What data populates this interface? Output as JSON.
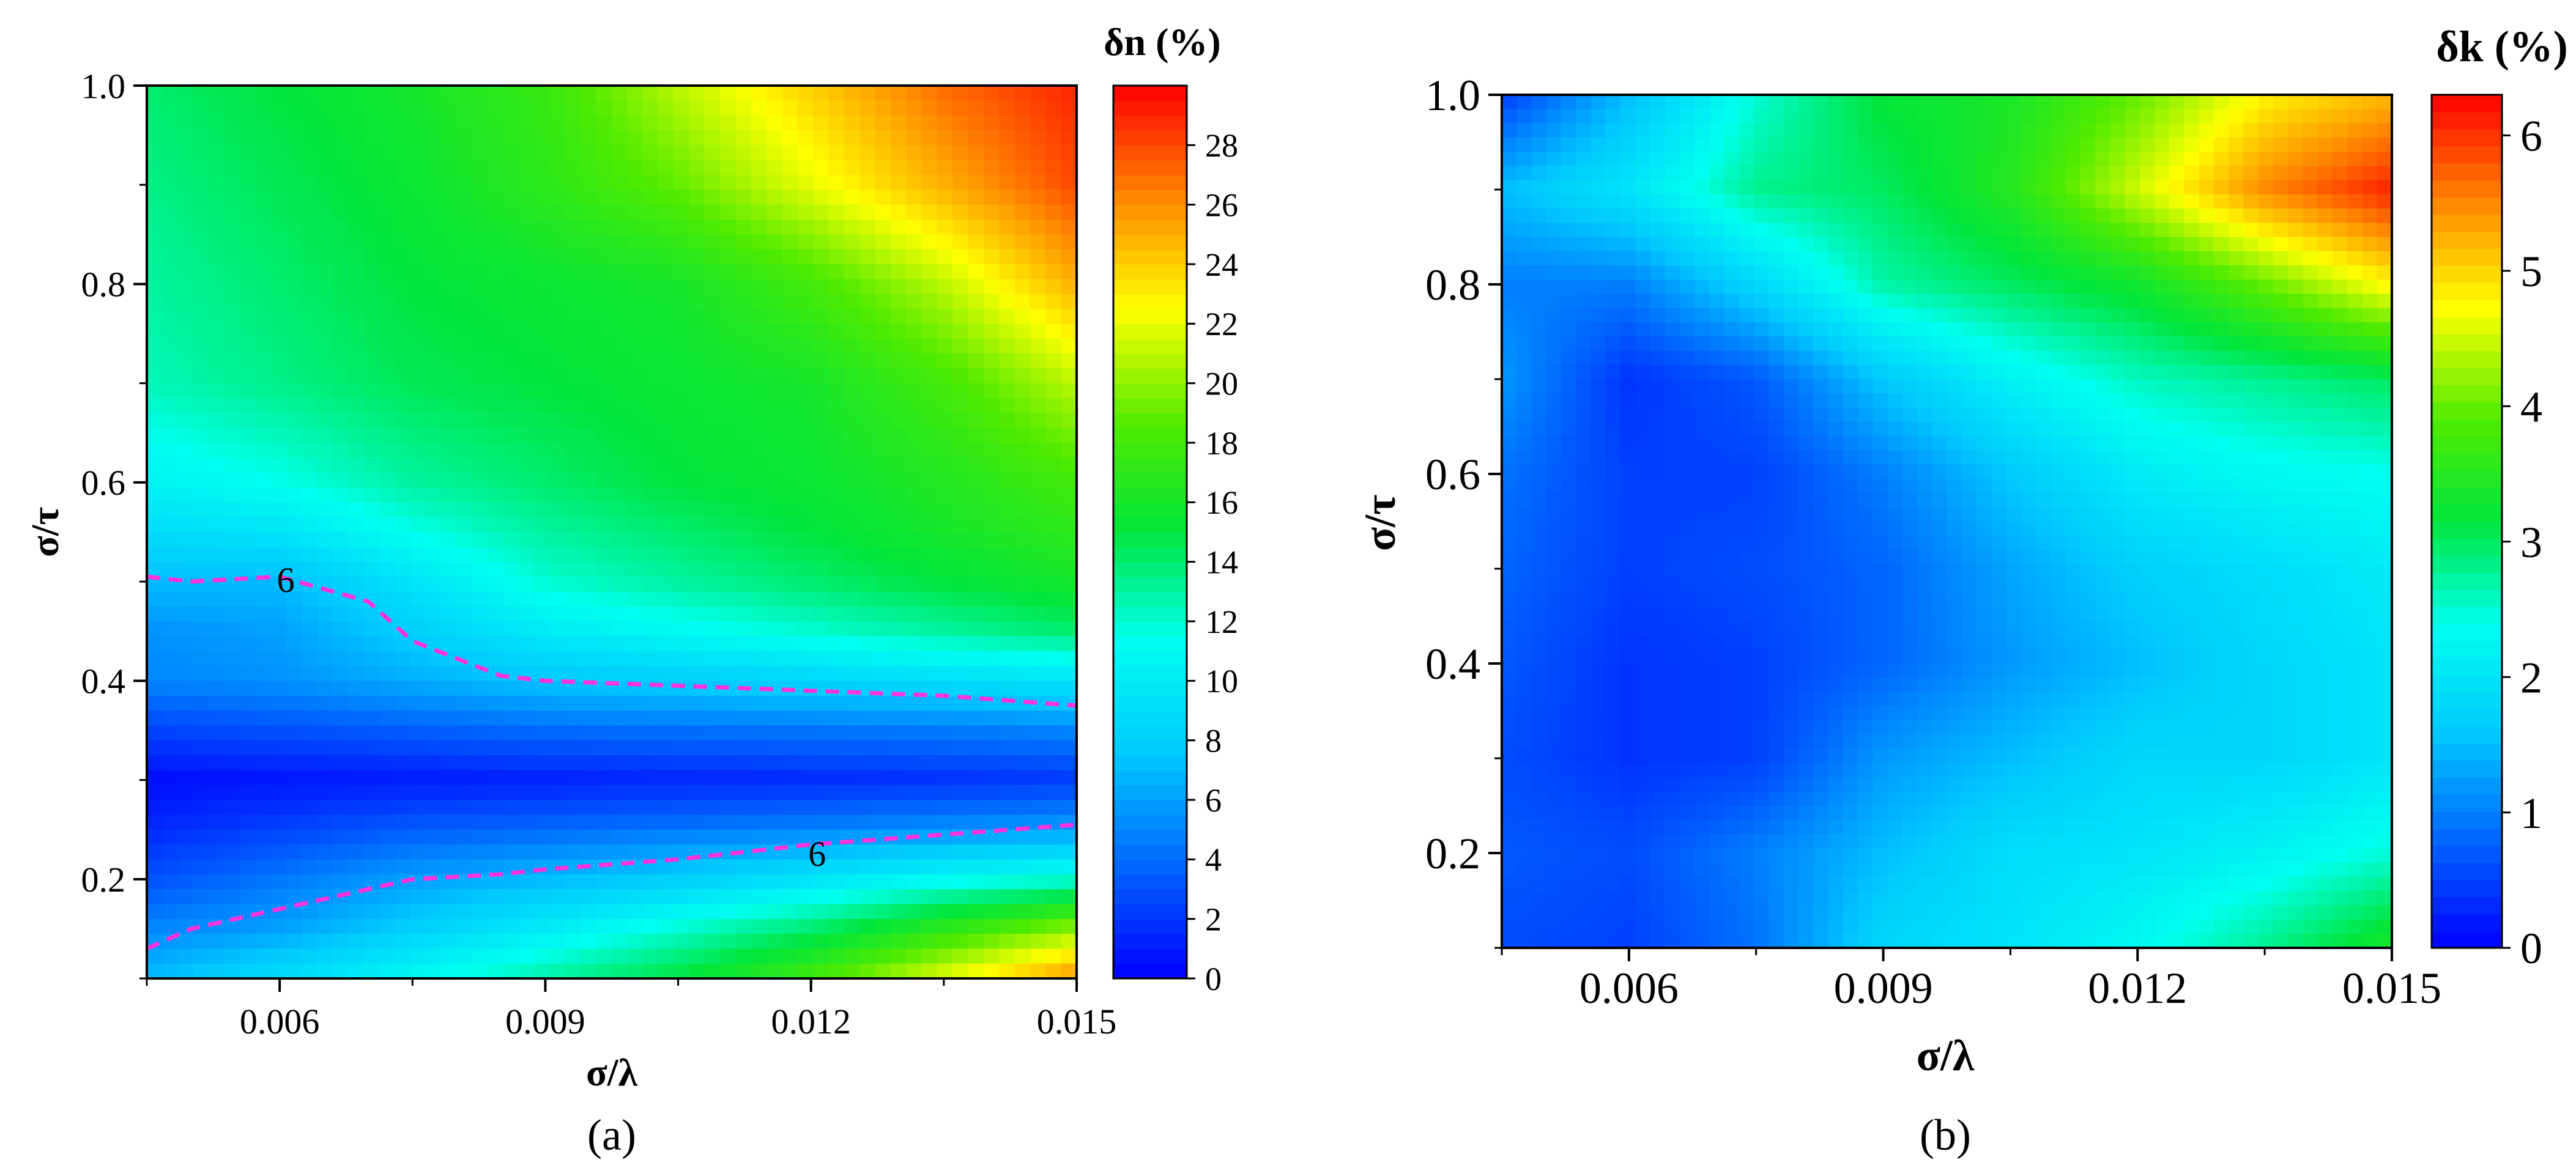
{
  "chart_data": [
    {
      "type": "heatmap",
      "panel_label": "(a)",
      "xlabel": "σ/λ",
      "ylabel": "σ/τ",
      "xlim": [
        0.0045,
        0.015
      ],
      "ylim": [
        0.1,
        1.0
      ],
      "x_ticks": [
        "0.006",
        "0.009",
        "0.012",
        "0.015"
      ],
      "y_ticks": [
        "0.2",
        "0.4",
        "0.6",
        "0.8",
        "1.0"
      ],
      "colorbar": {
        "title": "δn (%)",
        "range": [
          0,
          30
        ],
        "ticks": [
          "0",
          "2",
          "4",
          "6",
          "8",
          "10",
          "12",
          "14",
          "16",
          "18",
          "20",
          "22",
          "24",
          "26",
          "28"
        ]
      },
      "x": [
        0.0045,
        0.006,
        0.0075,
        0.009,
        0.0105,
        0.012,
        0.0135,
        0.015
      ],
      "y": [
        0.1,
        0.15,
        0.2,
        0.25,
        0.3,
        0.35,
        0.4,
        0.45,
        0.5,
        0.55,
        0.6,
        0.7,
        0.8,
        0.9,
        1.0
      ],
      "z": [
        [
          7,
          9,
          11,
          13,
          15,
          18,
          22,
          26
        ],
        [
          5,
          6,
          8,
          10,
          12,
          14,
          17,
          20
        ],
        [
          3,
          4.5,
          6,
          7,
          8,
          9.5,
          11,
          12
        ],
        [
          1.5,
          2.5,
          3.5,
          4,
          4.5,
          5,
          5.5,
          6
        ],
        [
          0.5,
          0.8,
          1,
          1.2,
          1.4,
          1.6,
          1.8,
          2.2
        ],
        [
          2.5,
          3,
          3.5,
          4,
          4.2,
          4.4,
          4.6,
          5
        ],
        [
          5,
          5.5,
          6.5,
          7.5,
          8,
          8.5,
          9,
          9.5
        ],
        [
          5.5,
          6,
          8,
          10,
          11,
          12,
          13,
          14
        ],
        [
          7,
          7,
          9.5,
          12,
          13,
          14,
          15,
          16
        ],
        [
          9,
          9.5,
          11.5,
          13,
          14,
          15,
          16,
          17
        ],
        [
          10.5,
          11.5,
          13,
          14,
          15,
          15.5,
          16.5,
          18
        ],
        [
          12.5,
          13.5,
          14.5,
          15,
          15.5,
          16,
          18,
          21
        ],
        [
          13,
          14,
          15,
          15.5,
          16,
          18,
          21,
          25
        ],
        [
          13.5,
          14.5,
          15.5,
          17,
          19,
          22,
          25,
          28
        ],
        [
          14,
          15,
          16,
          17.5,
          21,
          24,
          27,
          29
        ]
      ],
      "contours": [
        {
          "level_label": "6",
          "x": [
            0.0045,
            0.005,
            0.006,
            0.007,
            0.0075,
            0.0085,
            0.009,
            0.0105,
            0.012,
            0.0135,
            0.015
          ],
          "y": [
            0.505,
            0.5,
            0.505,
            0.48,
            0.44,
            0.405,
            0.4,
            0.395,
            0.39,
            0.385,
            0.375
          ]
        },
        {
          "level_label": "6",
          "x": [
            0.0045,
            0.005,
            0.006,
            0.007,
            0.0075,
            0.0085,
            0.009,
            0.0105,
            0.012,
            0.0135,
            0.015
          ],
          "y": [
            0.13,
            0.15,
            0.17,
            0.19,
            0.2,
            0.205,
            0.21,
            0.22,
            0.235,
            0.245,
            0.255
          ]
        }
      ]
    },
    {
      "type": "heatmap",
      "panel_label": "(b)",
      "xlabel": "σ/λ",
      "ylabel": "σ/τ",
      "xlim": [
        0.0045,
        0.015
      ],
      "ylim": [
        0.1,
        1.0
      ],
      "x_ticks": [
        "0.006",
        "0.009",
        "0.012",
        "0.015"
      ],
      "y_ticks": [
        "0.2",
        "0.4",
        "0.6",
        "0.8",
        "1.0"
      ],
      "colorbar": {
        "title": "δk (%)",
        "range": [
          0,
          6.3
        ],
        "ticks": [
          "0",
          "1",
          "2",
          "3",
          "4",
          "5",
          "6"
        ]
      },
      "x": [
        0.0045,
        0.006,
        0.0075,
        0.009,
        0.0105,
        0.012,
        0.0135,
        0.015
      ],
      "y": [
        0.1,
        0.2,
        0.3,
        0.4,
        0.5,
        0.6,
        0.7,
        0.8,
        0.9,
        1.0
      ],
      "z": [
        [
          0.6,
          0.5,
          0.9,
          1.8,
          2.0,
          2.3,
          2.8,
          3.4
        ],
        [
          0.7,
          0.6,
          1.0,
          1.5,
          1.9,
          2.0,
          2.2,
          2.5
        ],
        [
          0.6,
          0.4,
          0.5,
          1.2,
          1.5,
          1.8,
          1.8,
          2.0
        ],
        [
          0.7,
          0.4,
          0.5,
          0.8,
          1.2,
          1.5,
          1.8,
          2.0
        ],
        [
          0.8,
          0.5,
          0.6,
          0.8,
          1.3,
          1.7,
          1.9,
          2.1
        ],
        [
          0.9,
          0.5,
          0.5,
          1.0,
          1.6,
          2.1,
          2.3,
          2.4
        ],
        [
          1.2,
          0.4,
          0.7,
          1.6,
          2.2,
          2.6,
          2.8,
          3.0
        ],
        [
          1.0,
          1.0,
          1.8,
          2.7,
          3.0,
          3.3,
          4.0,
          4.8
        ],
        [
          1.5,
          2.0,
          2.8,
          3.0,
          3.5,
          4.5,
          5.5,
          6.1
        ],
        [
          0.5,
          1.5,
          2.5,
          3.2,
          3.4,
          4.0,
          4.8,
          5.2
        ]
      ]
    }
  ]
}
